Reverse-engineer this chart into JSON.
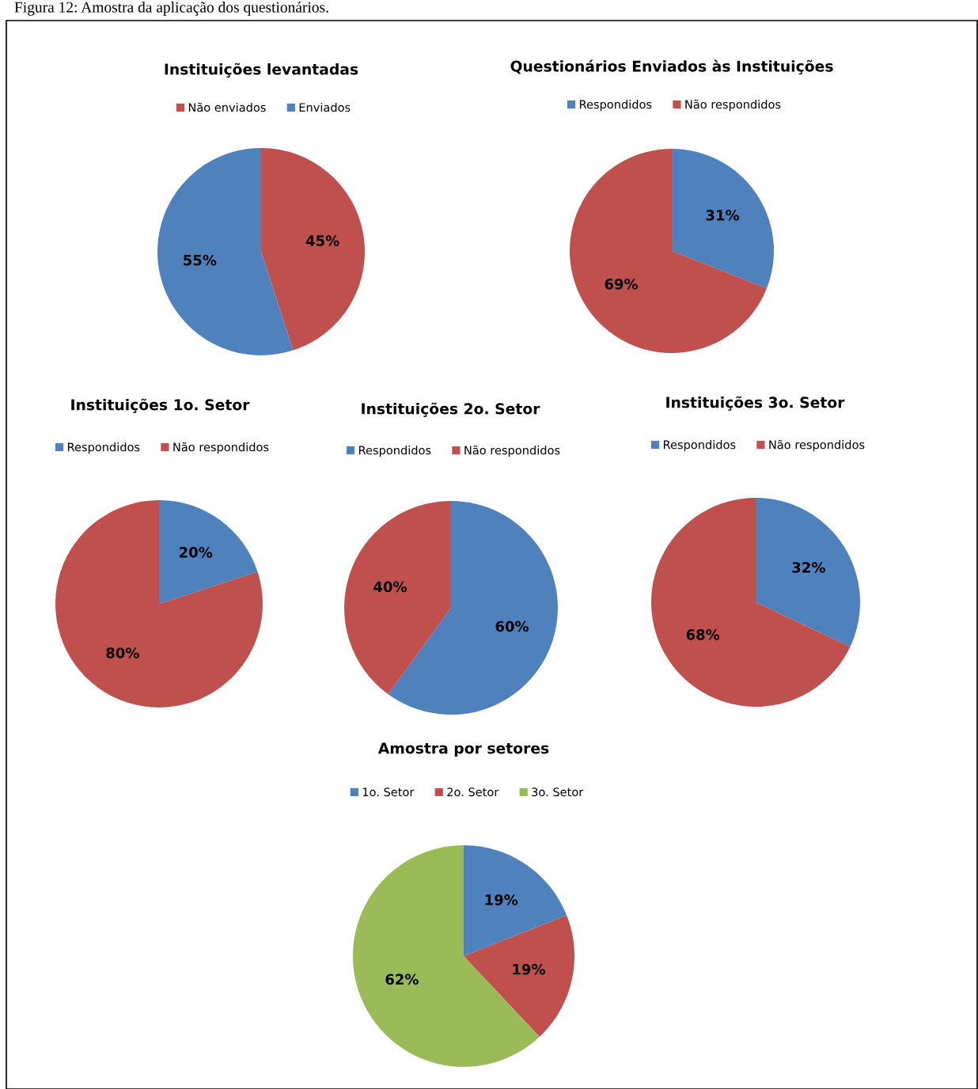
{
  "chart_data": [
    {
      "type": "pie",
      "title": "Instituições levantadas",
      "annotations": [
        "Figura 12: Amostra da aplicação dos questionários."
      ],
      "categories": [
        "Não enviados",
        "Enviados"
      ],
      "values": [
        45,
        55
      ],
      "value_labels": [
        "45%",
        "55%"
      ],
      "colors": [
        "#c0504d",
        "#4f81bd"
      ],
      "legend": "top"
    },
    {
      "type": "pie",
      "title": "Questionários Enviados às Instituições",
      "categories": [
        "Respondidos",
        "Não respondidos"
      ],
      "values": [
        31,
        69
      ],
      "value_labels": [
        "31%",
        "69%"
      ],
      "colors": [
        "#4f81bd",
        "#c0504d"
      ],
      "legend": "top"
    },
    {
      "type": "pie",
      "title": "Instituições 1o. Setor",
      "categories": [
        "Respondidos",
        "Não respondidos"
      ],
      "values": [
        20,
        80
      ],
      "value_labels": [
        "20%",
        "80%"
      ],
      "colors": [
        "#4f81bd",
        "#c0504d"
      ],
      "legend": "top"
    },
    {
      "type": "pie",
      "title": "Instituições 2o. Setor",
      "categories": [
        "Respondidos",
        "Não respondidos"
      ],
      "values": [
        60,
        40
      ],
      "value_labels": [
        "60%",
        "40%"
      ],
      "colors": [
        "#4f81bd",
        "#c0504d"
      ],
      "legend": "top"
    },
    {
      "type": "pie",
      "title": "Instituições 3o. Setor",
      "categories": [
        "Respondidos",
        "Não respondidos"
      ],
      "values": [
        32,
        68
      ],
      "value_labels": [
        "32%",
        "68%"
      ],
      "colors": [
        "#4f81bd",
        "#c0504d"
      ],
      "legend": "top"
    },
    {
      "type": "pie",
      "title": "Amostra por setores",
      "categories": [
        "1o. Setor",
        "2o. Setor",
        "3o. Setor"
      ],
      "values": [
        19,
        19,
        62
      ],
      "value_labels": [
        "19%",
        "19%",
        "62%"
      ],
      "colors": [
        "#4f81bd",
        "#c0504d",
        "#9bbb59"
      ],
      "legend": "top"
    }
  ]
}
